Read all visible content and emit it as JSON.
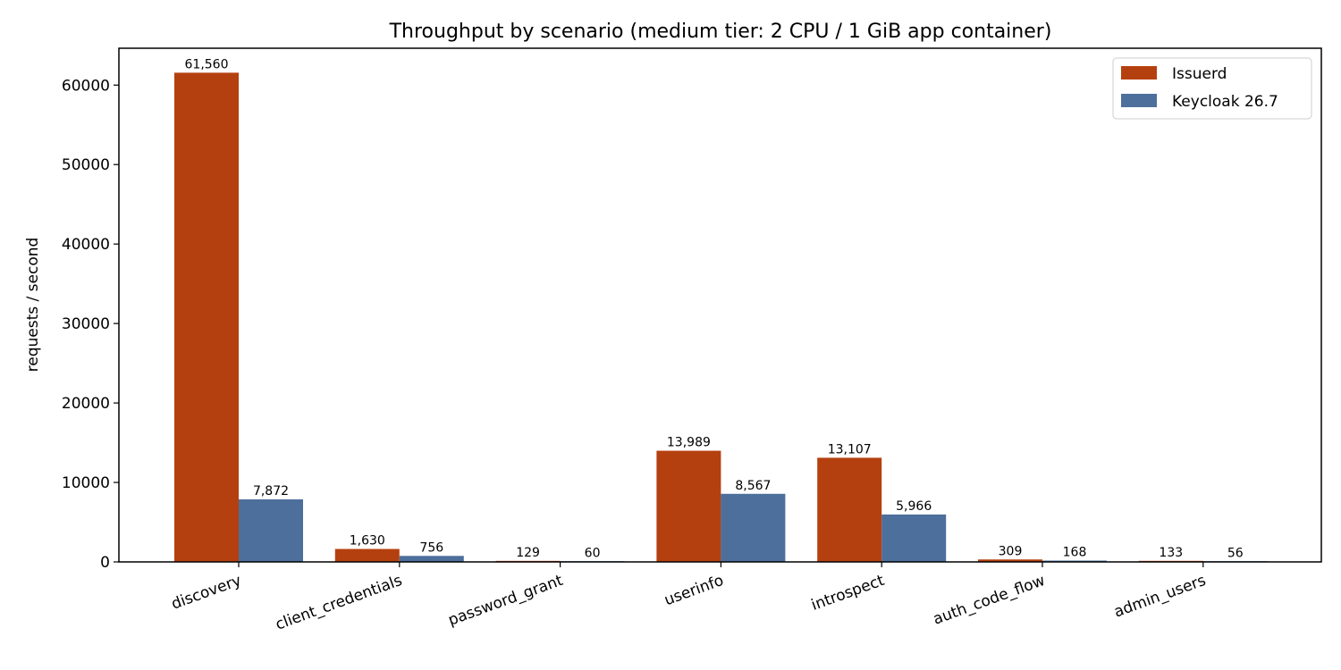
{
  "chart_data": {
    "type": "bar",
    "title": "Throughput by scenario (medium tier: 2 CPU / 1 GiB app container)",
    "xlabel": "",
    "ylabel": "requests / second",
    "categories": [
      "discovery",
      "client_credentials",
      "password_grant",
      "userinfo",
      "introspect",
      "auth_code_flow",
      "admin_users"
    ],
    "series": [
      {
        "name": "Issuerd",
        "color": "#b5400f",
        "values": [
          61560,
          1630,
          129,
          13989,
          13107,
          309,
          133
        ],
        "labels": [
          "61,560",
          "1,630",
          "129",
          "13,989",
          "13,107",
          "309",
          "133"
        ]
      },
      {
        "name": "Keycloak 26.7",
        "color": "#4d6f9c",
        "values": [
          7872,
          756,
          60,
          8567,
          5966,
          168,
          56
        ],
        "labels": [
          "7,872",
          "756",
          "60",
          "8,567",
          "5,966",
          "168",
          "56"
        ]
      }
    ],
    "ylim": [
      0,
      64638
    ],
    "yticks": [
      0,
      10000,
      20000,
      30000,
      40000,
      50000,
      60000
    ],
    "ytick_labels": [
      "0",
      "10000",
      "20000",
      "30000",
      "40000",
      "50000",
      "60000"
    ],
    "grid": false,
    "legend_position": "top-right"
  }
}
